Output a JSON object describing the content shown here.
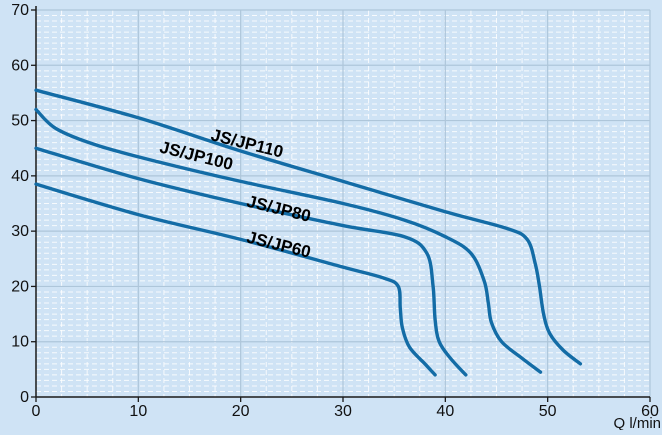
{
  "chart_data": {
    "type": "line",
    "title": "",
    "xlabel": "Q l/min",
    "ylabel": "",
    "xlim": [
      0,
      60
    ],
    "ylim": [
      0,
      70
    ],
    "x_ticks": [
      0,
      10,
      20,
      30,
      40,
      50,
      60
    ],
    "y_ticks": [
      0,
      10,
      20,
      30,
      40,
      50,
      60,
      70
    ],
    "grid": {
      "major_x": true,
      "major_y": true,
      "minor_x": true,
      "minor_y": true
    },
    "series": [
      {
        "name": "JS/JP110",
        "x": [
          0,
          10,
          20,
          30,
          40,
          46,
          48,
          48.8,
          49.2,
          49.6,
          50.2,
          51.5,
          53.2
        ],
        "y": [
          55.5,
          50.5,
          44.5,
          39,
          33.5,
          30.5,
          28.5,
          24,
          20,
          15,
          11.5,
          8.5,
          6
        ]
      },
      {
        "name": "JS/JP100",
        "x": [
          0,
          2,
          6,
          12,
          20,
          30,
          36,
          40,
          42.5,
          43.8,
          44.2,
          44.5,
          45.5,
          47.5,
          49.3
        ],
        "y": [
          52,
          48.5,
          45.5,
          42.5,
          39,
          35,
          32,
          29,
          26,
          21,
          17,
          13.5,
          10,
          7,
          4.5
        ]
      },
      {
        "name": "JS/JP80",
        "x": [
          0,
          10,
          20,
          30,
          36,
          38.2,
          38.8,
          39,
          39.4,
          40.5,
          42
        ],
        "y": [
          45,
          39.5,
          35,
          31,
          29,
          26,
          20,
          14,
          10,
          7,
          4
        ]
      },
      {
        "name": "JS/JP60",
        "x": [
          0,
          10,
          20,
          30,
          34,
          35.4,
          35.6,
          35.8,
          36.5,
          38,
          39
        ],
        "y": [
          38.5,
          33,
          28.5,
          23.5,
          21.5,
          20,
          16,
          12.5,
          9,
          6,
          4
        ]
      }
    ],
    "annotations": [
      {
        "text": "JS/JP110",
        "series": "JS/JP110"
      },
      {
        "text": "JS/JP100",
        "series": "JS/JP100"
      },
      {
        "text": "JS/JP80",
        "series": "JS/JP80"
      },
      {
        "text": "JS/JP60",
        "series": "JS/JP60"
      }
    ],
    "colors": {
      "background": "#cfe3f5",
      "line": "#136ca6",
      "major_grid": "#aec6da",
      "minor_grid": "#ffffff",
      "axis": "#1a1a1a",
      "text": "#111111"
    }
  }
}
